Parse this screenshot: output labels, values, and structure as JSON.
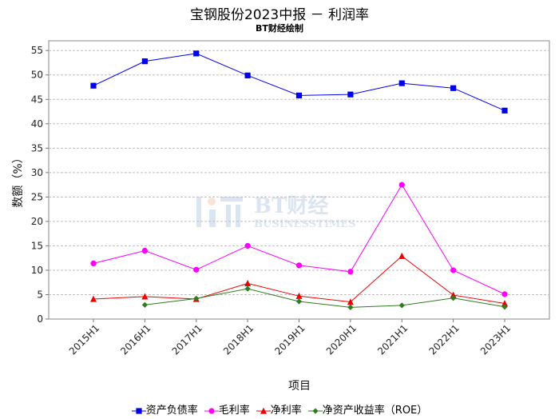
{
  "chart_data": {
    "type": "line",
    "title": "宝钢股份2023中报 － 利润率",
    "subtitle": "BT财经绘制",
    "xlabel": "项目",
    "ylabel": "数额（%）",
    "categories": [
      "2015H1",
      "2016H1",
      "2017H1",
      "2018H1",
      "2019H1",
      "2020H1",
      "2021H1",
      "2022H1",
      "2023H1"
    ],
    "ylim": [
      0,
      57
    ],
    "yticks": [
      0,
      5,
      10,
      15,
      20,
      25,
      30,
      35,
      40,
      45,
      50,
      55
    ],
    "grid": true,
    "legend_position": "bottom",
    "series": [
      {
        "name": "资产负债率",
        "color": "#0000ee",
        "marker": "square",
        "values": [
          47.8,
          52.8,
          54.4,
          49.9,
          45.8,
          46.0,
          48.3,
          47.3,
          42.7
        ]
      },
      {
        "name": "毛利率",
        "color": "#ff00ff",
        "marker": "circle",
        "values": [
          11.4,
          14.0,
          10.1,
          15.0,
          11.0,
          9.7,
          27.5,
          10.0,
          5.1
        ]
      },
      {
        "name": "净利率",
        "color": "#ee0000",
        "marker": "triangle",
        "values": [
          4.1,
          4.6,
          4.1,
          7.3,
          4.7,
          3.5,
          12.9,
          4.9,
          3.2
        ]
      },
      {
        "name": "净资产收益率（ROE）",
        "color": "#2e7d1e",
        "marker": "diamond",
        "values": [
          null,
          2.9,
          4.2,
          6.2,
          3.6,
          2.4,
          2.8,
          4.3,
          2.5
        ]
      }
    ]
  },
  "watermark": {
    "line1": "BT财经",
    "line2": "BUSINESSTIMES"
  }
}
